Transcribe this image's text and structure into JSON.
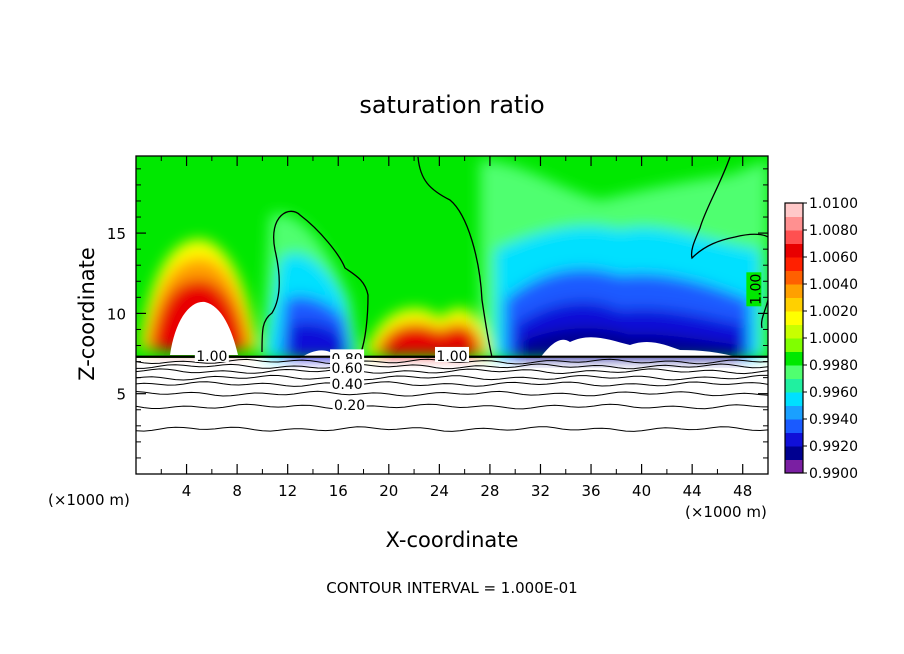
{
  "chart_data": {
    "type": "heatmap",
    "title": "saturation ratio",
    "xlabel": "X-coordinate",
    "ylabel": "Z-coordinate",
    "x_unit_left": "(×1000 m)",
    "x_unit_right": "(×1000 m)",
    "xlim": [
      0,
      50
    ],
    "ylim": [
      0,
      19.8
    ],
    "x_ticks": [
      4,
      8,
      12,
      16,
      20,
      24,
      28,
      32,
      36,
      40,
      44,
      48
    ],
    "y_ticks": [
      5,
      10,
      15
    ],
    "footer": "CONTOUR INTERVAL = 1.000E-01",
    "colorbar": {
      "levels": [
        0.99,
        0.992,
        0.994,
        0.996,
        0.998,
        1.0,
        1.002,
        1.004,
        1.006,
        1.008,
        1.01
      ],
      "labels": [
        "1.0100",
        "1.0080",
        "1.0060",
        "1.0040",
        "1.0020",
        "1.0000",
        "0.9980",
        "0.9960",
        "0.9940",
        "0.9920",
        "0.9900"
      ],
      "colors": [
        "#7a1fa2",
        "#000090",
        "#1010d8",
        "#1a5aff",
        "#1aa0ff",
        "#00e0ff",
        "#20f0a0",
        "#50ff70",
        "#00e800",
        "#80ff00",
        "#c8ff00",
        "#ffff00",
        "#ffd000",
        "#ffa000",
        "#ff6000",
        "#ff2000",
        "#e80000",
        "#ff5050",
        "#ff9090",
        "#ffc8c8"
      ]
    },
    "contour_labels": [
      {
        "text": "1.00",
        "x": 6.0,
        "y": 7.35
      },
      {
        "text": "1.00",
        "x": 25.0,
        "y": 7.35
      },
      {
        "text": "1.00",
        "x": 49.0,
        "y": 11.5
      },
      {
        "text": "0.80",
        "x": 16.7,
        "y": 7.2
      },
      {
        "text": "0.60",
        "x": 16.7,
        "y": 6.6
      },
      {
        "text": "0.40",
        "x": 16.7,
        "y": 5.6
      },
      {
        "text": "0.20",
        "x": 16.9,
        "y": 4.3
      }
    ],
    "contour_lines": [
      {
        "level": 0.8,
        "z": 7.0
      },
      {
        "level": 0.7,
        "z": 6.7
      },
      {
        "level": 0.6,
        "z": 6.4
      },
      {
        "level": 0.5,
        "z": 6.0
      },
      {
        "level": 0.4,
        "z": 5.6
      },
      {
        "level": 0.3,
        "z": 5.0
      },
      {
        "level": 0.2,
        "z": 4.2
      },
      {
        "level": 0.1,
        "z": 2.8
      }
    ]
  }
}
